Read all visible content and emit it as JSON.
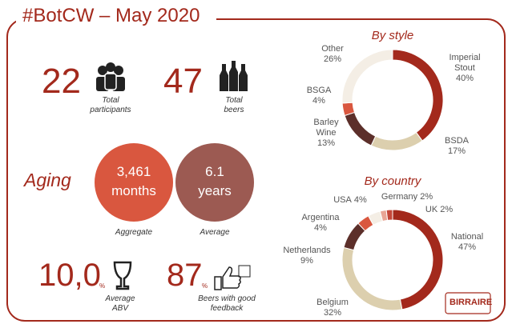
{
  "title": "#BotCW – May 2020",
  "kpis": {
    "participants": {
      "value": 22,
      "label": "Total participants"
    },
    "beers": {
      "value": 47,
      "label": "Total beers"
    },
    "aging": {
      "title": "Aging",
      "aggregate": {
        "value": 3461,
        "value_label": "3,461",
        "unit": "months",
        "label": "Aggregate"
      },
      "average": {
        "value": 6.1,
        "unit": "years",
        "label": "Average"
      }
    },
    "abv": {
      "value": 10.0,
      "value_label": "10,0",
      "unit": "%",
      "label": "Average ABV"
    },
    "feedback": {
      "value": 87,
      "unit": "%",
      "label": "Beers with good feedback"
    }
  },
  "logo": "BIRRAIRE",
  "chart_data": [
    {
      "type": "donut",
      "title": "By style",
      "categories": [
        "Imperial Stout",
        "BSDA",
        "Barley Wine",
        "BSGA",
        "Other"
      ],
      "values": [
        40,
        17,
        13,
        4,
        26
      ],
      "value_labels": [
        "40%",
        "17%",
        "13%",
        "4%",
        "26%"
      ],
      "colors": [
        "#a3291c",
        "#dccfae",
        "#5c2f2a",
        "#d9573f",
        "#f4eee5"
      ]
    },
    {
      "type": "donut",
      "title": "By country",
      "categories": [
        "National",
        "Belgium",
        "Netherlands",
        "Argentina",
        "USA",
        "Germany",
        "UK"
      ],
      "values": [
        47,
        32,
        9,
        4,
        4,
        2,
        2
      ],
      "value_labels": [
        "47%",
        "32%",
        "9%",
        "4%",
        "4%",
        "2%",
        "2%"
      ],
      "colors": [
        "#a3291c",
        "#dccfae",
        "#5c2f2a",
        "#d9573f",
        "#f4eee5",
        "#e9a596",
        "#c4473a"
      ]
    }
  ]
}
